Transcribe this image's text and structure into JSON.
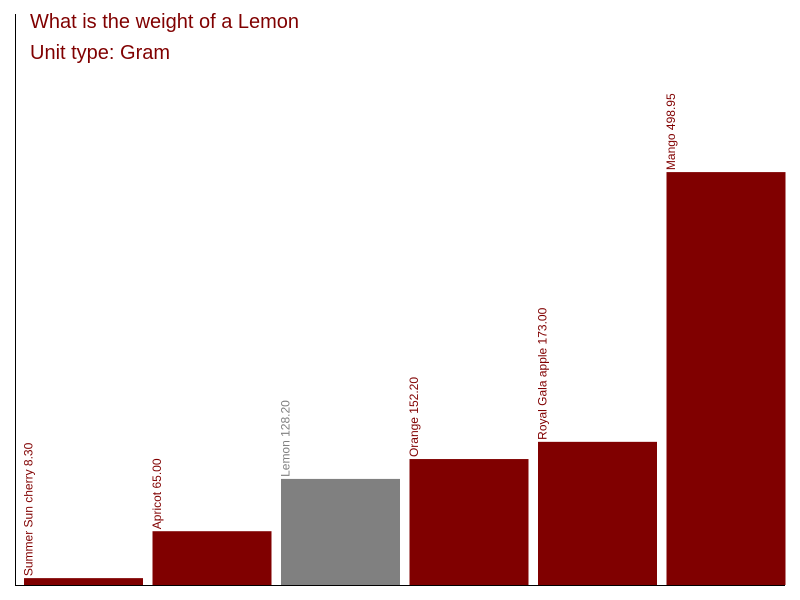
{
  "chart_data": {
    "type": "bar",
    "title": "What is the weight of a Lemon",
    "subtitle": "Unit type: Gram",
    "categories": [
      "Summer Sun cherry",
      "Apricot",
      "Lemon",
      "Orange",
      "Royal Gala apple",
      "Mango"
    ],
    "values": [
      8.3,
      65.0,
      128.2,
      152.2,
      173.0,
      498.95
    ],
    "data_labels": [
      "Summer Sun cherry 8.30",
      "Apricot 65.00",
      "Lemon 128.20",
      "Orange 152.20",
      "Royal Gala apple 173.00",
      "Mango 498.95"
    ],
    "highlighted_category": "Lemon",
    "ylim": [
      0,
      690
    ],
    "xlabel": "",
    "ylabel": "",
    "grid": false,
    "colors": {
      "bar": "#800000",
      "highlight": "#808080",
      "title": "#800000",
      "axis": "#000000"
    }
  }
}
